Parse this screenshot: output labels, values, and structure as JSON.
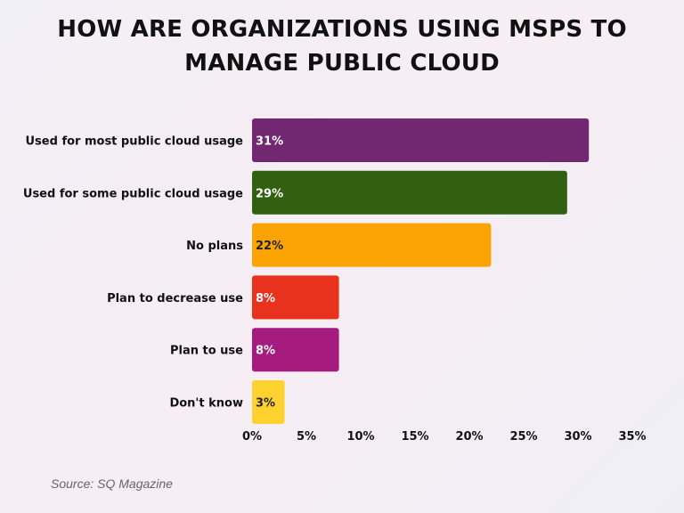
{
  "chart_data": {
    "type": "bar",
    "orientation": "horizontal",
    "title": "HOW ARE ORGANIZATIONS USING MSPS TO MANAGE PUBLIC CLOUD",
    "title_lines": [
      "HOW ARE ORGANIZATIONS USING MSPS TO",
      "MANAGE PUBLIC CLOUD"
    ],
    "categories": [
      "Used for most public cloud usage",
      "Used for some public cloud usage",
      "No plans",
      "Plan to decrease use",
      "Plan to use",
      "Don't know"
    ],
    "values": [
      31,
      29,
      22,
      8,
      8,
      3
    ],
    "value_labels": [
      "31%",
      "29%",
      "22%",
      "8%",
      "8%",
      "3%"
    ],
    "colors": [
      "#722871",
      "#306010",
      "#fba303",
      "#e8321e",
      "#a61c7e",
      "#fdd22e"
    ],
    "label_colors": [
      "#ffffff",
      "#ffffff",
      "#222222",
      "#ffffff",
      "#ffffff",
      "#222222"
    ],
    "xlim": [
      0,
      35
    ],
    "xticks": [
      0,
      5,
      10,
      15,
      20,
      25,
      30,
      35
    ],
    "xtick_labels": [
      "0%",
      "5%",
      "10%",
      "15%",
      "20%",
      "25%",
      "30%",
      "35%"
    ],
    "xlabel": "",
    "ylabel": "",
    "grid": false,
    "legend": "none"
  },
  "source": "Source: SQ Magazine"
}
